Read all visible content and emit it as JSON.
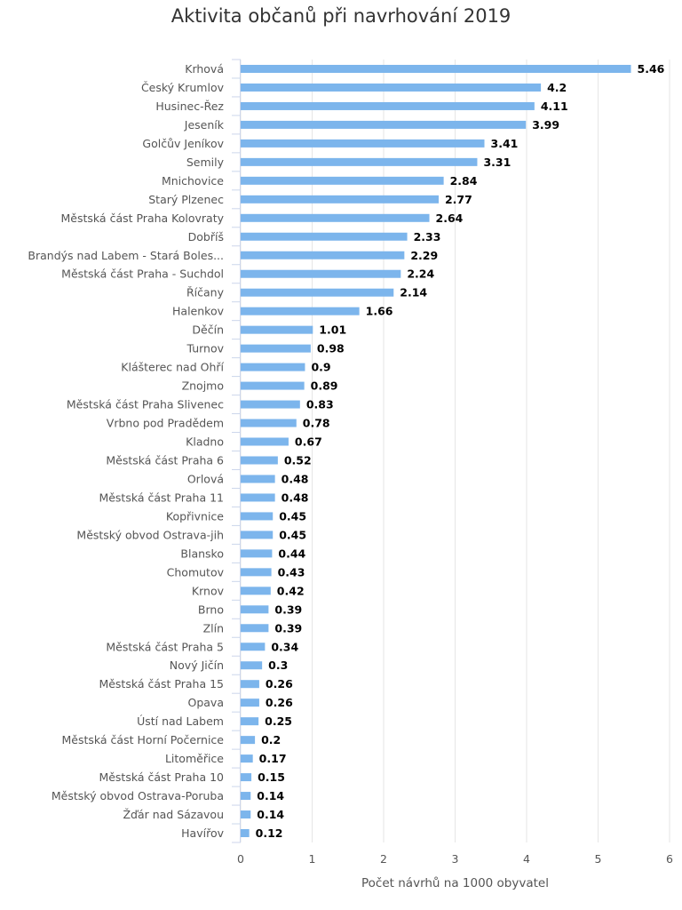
{
  "chart_data": {
    "type": "bar",
    "orientation": "horizontal",
    "title": "Aktivita občanů při navrhování 2019",
    "xlabel": "Počet návrhů na 1000 obyvatel",
    "ylabel": "",
    "xlim": [
      0,
      6
    ],
    "x_ticks": [
      "0",
      "1",
      "2",
      "3",
      "4",
      "5",
      "6"
    ],
    "grid": true,
    "bar_color": "#7cb5ec",
    "categories": [
      "Krhová",
      "Český Krumlov",
      "Husinec-Řez",
      "Jeseník",
      "Golčův Jeníkov",
      "Semily",
      "Mnichovice",
      "Starý Plzenec",
      "Městská část Praha Kolovraty",
      "Dobříš",
      "Brandýs nad Labem - Stará Boles...",
      "Městská část Praha - Suchdol",
      "Říčany",
      "Halenkov",
      "Děčín",
      "Turnov",
      "Klášterec nad Ohří",
      "Znojmo",
      "Městská část Praha Slivenec",
      "Vrbno pod Pradědem",
      "Kladno",
      "Městská část Praha 6",
      "Orlová",
      "Městská část Praha 11",
      "Kopřivnice",
      "Městský obvod Ostrava-jih",
      "Blansko",
      "Chomutov",
      "Krnov",
      "Brno",
      "Zlín",
      "Městská část Praha 5",
      "Nový Jičín",
      "Městská část Praha 15",
      "Opava",
      "Ústí nad Labem",
      "Městská část Horní Počernice",
      "Litoměřice",
      "Městská část Praha 10",
      "Městský obvod Ostrava-Poruba",
      "Žďár nad Sázavou",
      "Havířov"
    ],
    "values": [
      5.46,
      4.2,
      4.11,
      3.99,
      3.41,
      3.31,
      2.84,
      2.77,
      2.64,
      2.33,
      2.29,
      2.24,
      2.14,
      1.66,
      1.01,
      0.98,
      0.9,
      0.89,
      0.83,
      0.78,
      0.67,
      0.52,
      0.48,
      0.48,
      0.45,
      0.45,
      0.44,
      0.43,
      0.42,
      0.39,
      0.39,
      0.34,
      0.3,
      0.26,
      0.26,
      0.25,
      0.2,
      0.17,
      0.15,
      0.14,
      0.14,
      0.12
    ]
  }
}
